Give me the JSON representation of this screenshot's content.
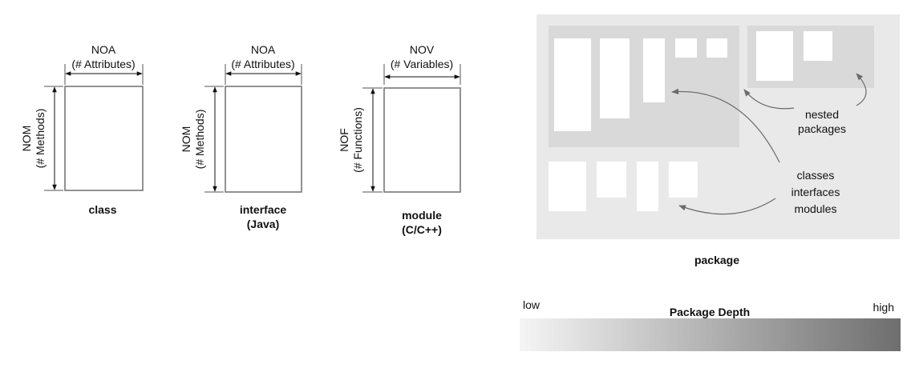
{
  "entities": {
    "class": {
      "width_metric": "NOA",
      "width_desc": "(# Attributes)",
      "height_metric": "NOM",
      "height_desc": "(# Methods)",
      "caption_line1": "class",
      "caption_line2": ""
    },
    "interface": {
      "width_metric": "NOA",
      "width_desc": "(# Attributes)",
      "height_metric": "NOM",
      "height_desc": "(# Methods)",
      "caption_line1": "interface",
      "caption_line2": "(Java)"
    },
    "module": {
      "width_metric": "NOV",
      "width_desc": "(# Variables)",
      "height_metric": "NOF",
      "height_desc": "(# Functions)",
      "caption_line1": "module",
      "caption_line2": "(C/C++)"
    }
  },
  "package_view": {
    "caption": "package",
    "nested_label": [
      "nested",
      "packages"
    ],
    "contents_label": [
      "classes",
      "interfaces",
      "modules"
    ]
  },
  "depth_legend": {
    "title": "Package Depth",
    "low_label": "low",
    "high_label": "high",
    "gradient_from": "#f5f5f5",
    "gradient_to": "#6e6e6e"
  },
  "colors": {
    "package_outer": "#e9e9e9",
    "package_nested": "#d9d9d9",
    "pointer": "#6b6b6b"
  }
}
